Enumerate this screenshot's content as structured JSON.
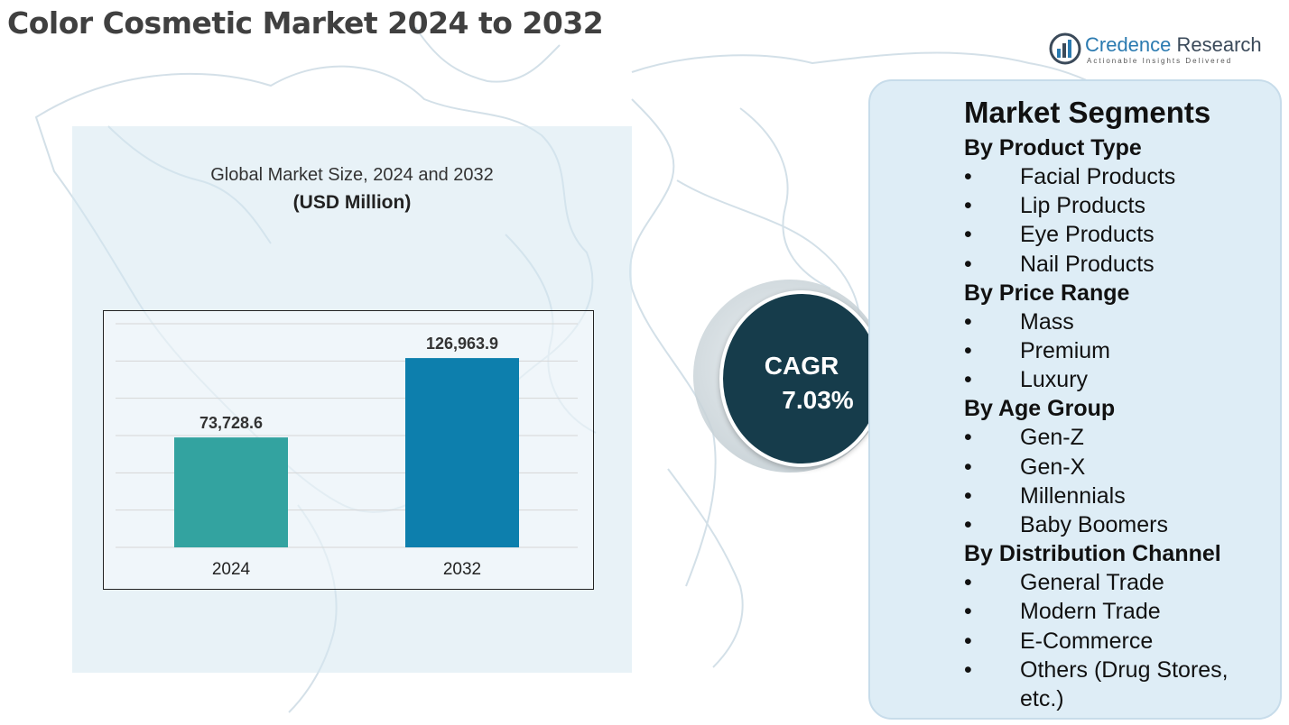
{
  "page": {
    "title": "Color Cosmetic Market 2024 to 2032"
  },
  "brand": {
    "name_part1": "Credence",
    "name_part2": "Research",
    "tagline": "Actionable Insights Delivered",
    "icon": "bar-chart-logo-icon",
    "color": "#2a7ab0"
  },
  "chart": {
    "title": "Global Market Size, 2024 and 2032",
    "unit": "(USD Million)"
  },
  "chart_data": {
    "type": "bar",
    "title": "Global Market Size, 2024 and 2032",
    "subtitle": "(USD Million)",
    "categories": [
      "2024",
      "2032"
    ],
    "values": [
      73728.6,
      126963.9
    ],
    "value_labels": [
      "73,728.6",
      "126,963.9"
    ],
    "bar_colors": [
      "#33a3a0",
      "#0d7fad"
    ],
    "ylim": [
      0,
      150000
    ],
    "grid": true,
    "legend": "none"
  },
  "cagr": {
    "label": "CAGR",
    "value": "7.03%",
    "color": "#163c4b"
  },
  "segments": {
    "heading": "Market Segments",
    "bullet": "•",
    "groups": [
      {
        "title": "By Product Type",
        "items": [
          "Facial Products",
          "Lip Products",
          "Eye Products",
          "Nail Products"
        ]
      },
      {
        "title": "By Price Range",
        "items": [
          "Mass",
          "Premium",
          "Luxury"
        ]
      },
      {
        "title": "By Age Group",
        "items": [
          "Gen-Z",
          "Gen-X",
          "Millennials",
          "Baby Boomers"
        ]
      },
      {
        "title": "By Distribution Channel",
        "items": [
          "General Trade",
          "Modern Trade",
          "E-Commerce",
          "Others (Drug Stores, etc.)"
        ]
      }
    ]
  }
}
